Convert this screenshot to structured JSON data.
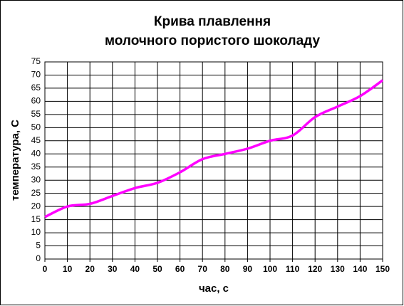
{
  "chart_data": {
    "type": "line",
    "title": [
      "Крива плавлення",
      "молочного пористого шоколаду"
    ],
    "x_label": "час, с",
    "y_label": "температура, С",
    "x": [
      0,
      10,
      20,
      30,
      40,
      50,
      60,
      70,
      80,
      90,
      100,
      110,
      120,
      130,
      140,
      150
    ],
    "values": [
      16,
      20,
      21,
      24,
      27,
      29,
      33,
      38,
      40,
      42,
      45,
      47,
      54,
      58,
      62,
      68
    ],
    "color": "#ff00ff",
    "xlim": [
      0,
      150
    ],
    "xticks": [
      0,
      10,
      20,
      30,
      40,
      50,
      60,
      70,
      80,
      90,
      100,
      110,
      120,
      130,
      140,
      150
    ],
    "ylim": [
      0,
      75
    ],
    "yticks": [
      0,
      5,
      10,
      15,
      20,
      25,
      30,
      35,
      40,
      45,
      50,
      55,
      60,
      65,
      70,
      75
    ],
    "grid": true
  }
}
